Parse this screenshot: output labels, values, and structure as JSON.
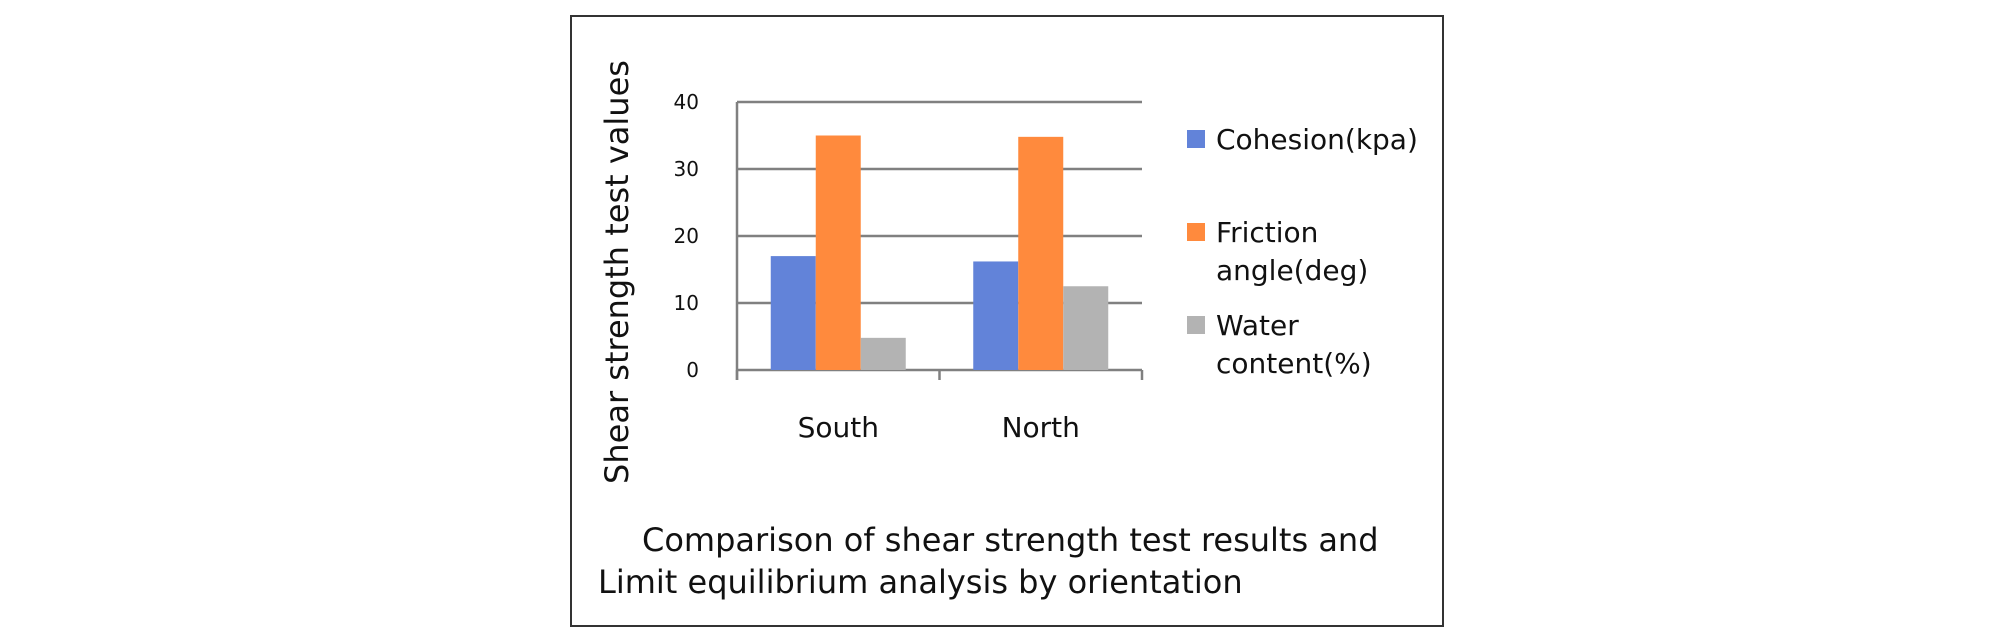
{
  "chart_data": {
    "type": "bar",
    "ylabel": "Shear strength test values",
    "xlabel": "",
    "ylim": [
      0,
      40
    ],
    "yticks": [
      0,
      10,
      20,
      30,
      40
    ],
    "grid": true,
    "legend_position": "right",
    "categories": [
      "South",
      "North"
    ],
    "series": [
      {
        "name": "Cohesion(kpa)",
        "legend_lines": [
          "Cohesion(kpa)"
        ],
        "color": "#6283D9",
        "values": [
          17,
          16.2
        ]
      },
      {
        "name": "Friction angle(deg)",
        "legend_lines": [
          "Friction",
          "angle(deg)"
        ],
        "color": "#FF8A3D",
        "values": [
          35,
          34.8
        ]
      },
      {
        "name": "Water content(%)",
        "legend_lines": [
          "Water",
          "content(%)"
        ],
        "color": "#B3B3B3",
        "values": [
          4.8,
          12.5
        ]
      }
    ]
  },
  "caption": {
    "line1": "Comparison of shear strength test results and",
    "line2": "Limit equilibrium analysis by orientation"
  },
  "colors": {
    "grid": "#808080",
    "axis": "#808080",
    "text": "#111111"
  }
}
